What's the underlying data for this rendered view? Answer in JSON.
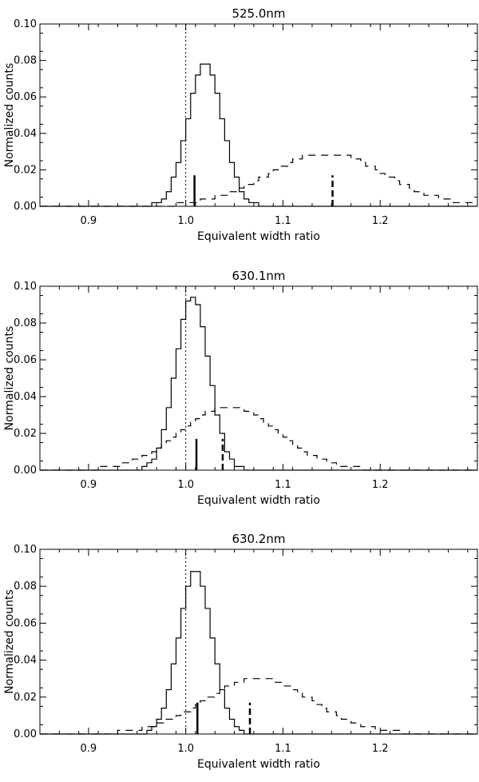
{
  "chart_data": [
    {
      "type": "histogram",
      "title": "525.0nm",
      "xlabel": "Equivalent width ratio",
      "ylabel": "Normalized counts",
      "xlim": [
        0.85,
        1.3
      ],
      "ylim": [
        0,
        0.1
      ],
      "x_ticks": [
        0.9,
        1.0,
        1.1,
        1.2
      ],
      "x_tick_labels": [
        "0.9",
        "1.0",
        "1.1",
        "1.2"
      ],
      "y_ticks": [
        0.0,
        0.02,
        0.04,
        0.06,
        0.08,
        0.1
      ],
      "y_tick_labels": [
        "0.00",
        "0.02",
        "0.04",
        "0.06",
        "0.08",
        "0.10"
      ],
      "reference_line_x": 1.0,
      "series": [
        {
          "name": "solid",
          "style": "solid",
          "mean": 1.02,
          "sigma": 0.018,
          "peak": 0.078
        },
        {
          "name": "dashed",
          "style": "dashed",
          "mean": 1.145,
          "sigma": 0.06,
          "peak": 0.029
        }
      ],
      "markers": [
        {
          "x": 1.009,
          "height": 0.017,
          "style": "solid"
        },
        {
          "x": 1.151,
          "height": 0.017,
          "style": "dashed"
        }
      ]
    },
    {
      "type": "histogram",
      "title": "630.1nm",
      "xlabel": "Equivalent width ratio",
      "ylabel": "Normalized counts",
      "xlim": [
        0.85,
        1.3
      ],
      "ylim": [
        0,
        0.1
      ],
      "x_ticks": [
        0.9,
        1.0,
        1.1,
        1.2
      ],
      "x_tick_labels": [
        "0.9",
        "1.0",
        "1.1",
        "1.2"
      ],
      "y_ticks": [
        0.0,
        0.02,
        0.04,
        0.06,
        0.08,
        0.1
      ],
      "y_tick_labels": [
        "0.00",
        "0.02",
        "0.04",
        "0.06",
        "0.08",
        "0.10"
      ],
      "reference_line_x": 1.0,
      "series": [
        {
          "name": "solid",
          "style": "solid",
          "mean": 1.007,
          "sigma": 0.017,
          "peak": 0.095
        },
        {
          "name": "dashed",
          "style": "dashed",
          "mean": 1.045,
          "sigma": 0.05,
          "peak": 0.035
        }
      ],
      "markers": [
        {
          "x": 1.011,
          "height": 0.017,
          "style": "solid"
        },
        {
          "x": 1.038,
          "height": 0.017,
          "style": "dashed"
        }
      ]
    },
    {
      "type": "histogram",
      "title": "630.2nm",
      "xlabel": "Equivalent width ratio",
      "ylabel": "Normalized counts",
      "xlim": [
        0.85,
        1.3
      ],
      "ylim": [
        0,
        0.1
      ],
      "x_ticks": [
        0.9,
        1.0,
        1.1,
        1.2
      ],
      "x_tick_labels": [
        "0.9",
        "1.0",
        "1.1",
        "1.2"
      ],
      "y_ticks": [
        0.0,
        0.02,
        0.04,
        0.06,
        0.08,
        0.1
      ],
      "y_tick_labels": [
        "0.00",
        "0.02",
        "0.04",
        "0.06",
        "0.08",
        "0.10"
      ],
      "reference_line_x": 1.0,
      "series": [
        {
          "name": "solid",
          "style": "solid",
          "mean": 1.01,
          "sigma": 0.017,
          "peak": 0.089
        },
        {
          "name": "dashed",
          "style": "dashed",
          "mean": 1.075,
          "sigma": 0.055,
          "peak": 0.03
        }
      ],
      "markers": [
        {
          "x": 1.012,
          "height": 0.017,
          "style": "solid"
        },
        {
          "x": 1.066,
          "height": 0.017,
          "style": "dashed"
        }
      ]
    }
  ]
}
